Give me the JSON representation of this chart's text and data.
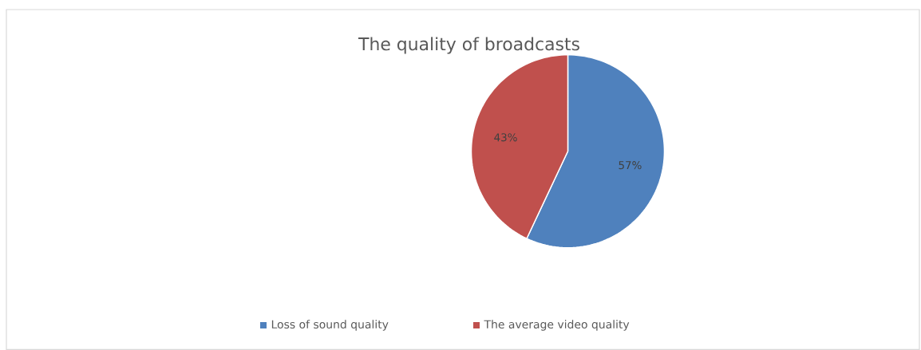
{
  "chart_data": {
    "type": "pie",
    "title": "The quality of broadcasts",
    "categories": [
      "Loss of sound quality",
      "The average video quality"
    ],
    "values": [
      57,
      43
    ],
    "colors": [
      "#4f81bd",
      "#c0504d"
    ],
    "value_labels": [
      "57%",
      "43%"
    ],
    "legend": "bottom"
  }
}
